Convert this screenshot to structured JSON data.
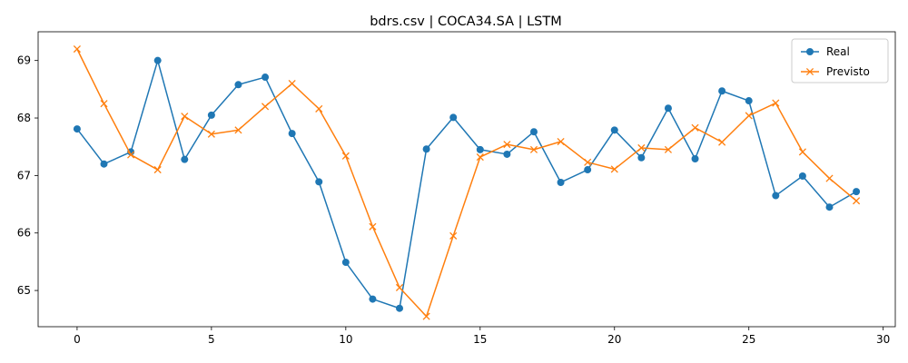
{
  "chart_data": {
    "type": "line",
    "title": "bdrs.csv | COCA34.SA | LSTM",
    "xlabel": "",
    "ylabel": "",
    "xlim": [
      -1.45,
      30.45
    ],
    "ylim": [
      64.37,
      69.5
    ],
    "x_ticks": [
      0,
      5,
      10,
      15,
      20,
      25,
      30
    ],
    "y_ticks": [
      65,
      66,
      67,
      68,
      69
    ],
    "grid": false,
    "legend_position": "top-right",
    "x": [
      0,
      1,
      2,
      3,
      4,
      5,
      6,
      7,
      8,
      9,
      10,
      11,
      12,
      13,
      14,
      15,
      16,
      17,
      18,
      19,
      20,
      21,
      22,
      23,
      24,
      25,
      26,
      27,
      28,
      29
    ],
    "series": [
      {
        "name": "Real",
        "color": "#1f77b4",
        "marker": "circle",
        "values": [
          67.81,
          67.2,
          67.41,
          69.0,
          67.28,
          68.05,
          68.58,
          68.71,
          67.73,
          66.89,
          65.49,
          64.85,
          64.69,
          67.46,
          68.01,
          67.45,
          67.37,
          67.76,
          66.88,
          67.1,
          67.79,
          67.31,
          68.17,
          67.29,
          68.47,
          68.3,
          66.65,
          66.99,
          66.45,
          66.72
        ]
      },
      {
        "name": "Previsto",
        "color": "#ff7f0e",
        "marker": "x",
        "values": [
          69.2,
          68.25,
          67.36,
          67.1,
          68.03,
          67.72,
          67.79,
          68.2,
          68.6,
          68.16,
          67.34,
          66.11,
          65.05,
          64.55,
          65.95,
          67.32,
          67.54,
          67.45,
          67.59,
          67.23,
          67.11,
          67.48,
          67.45,
          67.83,
          67.58,
          68.04,
          68.26,
          67.41,
          66.95,
          66.56
        ]
      }
    ]
  }
}
